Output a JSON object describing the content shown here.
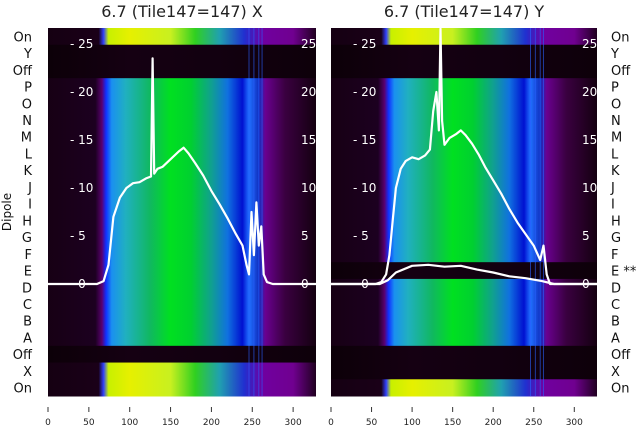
{
  "chart_data": {
    "type": "heatmap",
    "ylabel": "Dipole",
    "xticks": [
      0,
      50,
      100,
      150,
      200,
      250,
      300
    ],
    "xlim": [
      0,
      328
    ],
    "overlay_yticks": [
      0,
      5,
      10,
      15,
      20,
      25
    ],
    "overlay_ylim": [
      -11.8,
      26.6
    ],
    "row_labels": [
      "On",
      "Y",
      "Off",
      "P",
      "O",
      "N",
      "M",
      "L",
      "K",
      "J",
      "I",
      "H",
      "G",
      "F",
      "E",
      "D",
      "C",
      "B",
      "A",
      "Off",
      "X",
      "On"
    ],
    "panels": [
      {
        "title": "6.7 (Tile147=147) X",
        "row_types": [
          "on",
          "dark",
          "dark",
          "dipole",
          "dipole",
          "dipole",
          "dipole",
          "dipole",
          "dipole",
          "dipole",
          "dipole",
          "dipole",
          "dipole",
          "dipole",
          "dipole",
          "dipole",
          "dipole",
          "dipole",
          "dipole",
          "dark",
          "on",
          "on"
        ],
        "right_labels": [],
        "lines": [
          {
            "name": "spectra",
            "x": [
              0,
              60,
              68,
              74,
              80,
              88,
              96,
              104,
              112,
              120,
              126,
              128,
              130,
              134,
              140,
              150,
              160,
              166,
              172,
              180,
              190,
              200,
              210,
              220,
              230,
              238,
              243,
              246,
              249,
              252,
              255,
              258,
              261,
              264,
              268,
              275,
              328
            ],
            "y": [
              0,
              0,
              0.3,
              2,
              7,
              9,
              10,
              10.5,
              10.6,
              11,
              11.2,
              23.5,
              11.5,
              12,
              12.2,
              13,
              13.8,
              14.2,
              13.6,
              12.6,
              11.3,
              9.7,
              8.3,
              6.8,
              5.2,
              4,
              2,
              1,
              7.5,
              3,
              8.5,
              4,
              6,
              1,
              0.2,
              0,
              0
            ]
          }
        ]
      },
      {
        "title": "6.7 (Tile147=147) Y",
        "row_types": [
          "on",
          "dark",
          "dark",
          "dipole",
          "dipole",
          "dipole",
          "dipole",
          "dipole",
          "dipole",
          "dipole",
          "dipole",
          "dipole",
          "dipole",
          "dipole",
          "dark",
          "dipole",
          "dipole",
          "dipole",
          "dipole",
          "dark",
          "dark",
          "on"
        ],
        "right_labels": [
          "On",
          "Y",
          "Off",
          "P",
          "O",
          "N",
          "M",
          "L",
          "K",
          "J",
          "I",
          "H",
          "G",
          "F",
          "E **",
          "D",
          "C",
          "B",
          "A",
          "Off",
          "X",
          "On"
        ],
        "lines": [
          {
            "name": "spectra",
            "x": [
              0,
              55,
              62,
              68,
              72,
              76,
              80,
              86,
              92,
              100,
              108,
              116,
              122,
              126,
              130,
              133,
              135,
              137,
              140,
              146,
              154,
              160,
              166,
              174,
              182,
              190,
              200,
              210,
              220,
              230,
              240,
              250,
              258,
              262,
              266,
              270,
              328
            ],
            "y": [
              0,
              0,
              0.2,
              1,
              3,
              6.5,
              10,
              12,
              12.8,
              13.2,
              13,
              13.4,
              14,
              18,
              20,
              16,
              26.6,
              17,
              14.5,
              15.2,
              15.6,
              16,
              15.5,
              14.6,
              13.5,
              12.2,
              10.8,
              9.4,
              7.8,
              6.4,
              5.2,
              4,
              2.5,
              4,
              1,
              0,
              0
            ]
          },
          {
            "name": "flagged-E",
            "x": [
              0,
              60,
              70,
              80,
              100,
              120,
              140,
              160,
              180,
              200,
              220,
              240,
              260,
              275,
              328
            ],
            "y": [
              0,
              0,
              0.4,
              1.2,
              1.9,
              2,
              1.8,
              1.9,
              1.5,
              1.2,
              0.8,
              0.6,
              0.3,
              0,
              0
            ]
          }
        ]
      }
    ]
  }
}
